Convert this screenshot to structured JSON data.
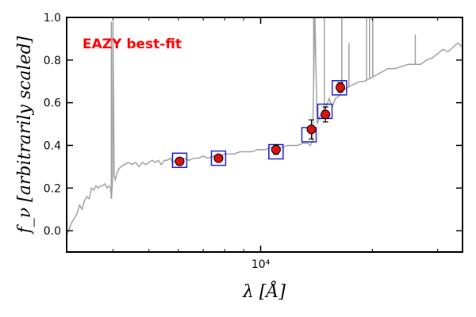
{
  "chart_data": {
    "type": "scatter",
    "title": "",
    "xlabel": "λ [Å]",
    "ylabel": "f_ν [arbitrarily scaled]",
    "x_scale": "log",
    "xlim": [
      3000,
      35000
    ],
    "ylim": [
      -0.1,
      1.0
    ],
    "x_ticks": [
      {
        "value": 10000,
        "label": "10⁴"
      }
    ],
    "y_ticks": [
      0.0,
      0.2,
      0.4,
      0.6,
      0.8,
      1.0
    ],
    "y_tick_labels": [
      "0.0",
      "0.2",
      "0.4",
      "0.6",
      "0.8",
      "1.0"
    ],
    "annotation": {
      "text": "EAZY best-fit",
      "color": "#ff0000",
      "position": "top-left"
    },
    "colors": {
      "template": "#a0a0a0",
      "observed_fill": "#dd1111",
      "observed_edge": "#000000",
      "model_box": "#1f1fcf"
    },
    "series": [
      {
        "name": "best-fit template spectrum",
        "kind": "line",
        "x": [
          3000,
          3050,
          3100,
          3150,
          3200,
          3250,
          3300,
          3350,
          3400,
          3450,
          3500,
          3550,
          3600,
          3650,
          3700,
          3750,
          3800,
          3850,
          3900,
          3940,
          3960,
          3990,
          4000,
          4030,
          4060,
          4100,
          4150,
          4200,
          4300,
          4400,
          4500,
          4600,
          4700,
          4800,
          4900,
          5000,
          5100,
          5200,
          5300,
          5400,
          5500,
          5600,
          5700,
          5800,
          5900,
          6000,
          6200,
          6400,
          6600,
          6800,
          7000,
          7200,
          7500,
          7800,
          8000,
          8200,
          8500,
          8800,
          9000,
          9200,
          9500,
          9800,
          10000,
          10300,
          10600,
          11000,
          11400,
          11800,
          12200,
          12600,
          13000,
          13200,
          13400,
          13600,
          13800,
          14000,
          14200,
          14400,
          14600,
          14800,
          15000,
          15300,
          15600,
          15900,
          16200,
          16500,
          16800,
          17100,
          17500,
          18000,
          18500,
          19000,
          19500,
          20000,
          21000,
          22000,
          23000,
          24000,
          25000,
          26000,
          27000,
          28000,
          29000,
          30000,
          31000,
          32000,
          33000,
          34000,
          35000
        ],
        "y": [
          -0.02,
          0.01,
          0.04,
          0.06,
          0.08,
          0.12,
          0.1,
          0.14,
          0.16,
          0.15,
          0.2,
          0.19,
          0.21,
          0.2,
          0.21,
          0.21,
          0.22,
          0.2,
          0.21,
          0.2,
          0.15,
          0.24,
          0.98,
          0.26,
          0.24,
          0.27,
          0.29,
          0.3,
          0.31,
          0.32,
          0.31,
          0.32,
          0.3,
          0.32,
          0.31,
          0.32,
          0.33,
          0.32,
          0.33,
          0.31,
          0.33,
          0.33,
          0.34,
          0.32,
          0.33,
          0.33,
          0.34,
          0.33,
          0.34,
          0.34,
          0.35,
          0.34,
          0.35,
          0.35,
          0.36,
          0.36,
          0.36,
          0.37,
          0.37,
          0.37,
          0.37,
          0.38,
          0.38,
          0.38,
          0.39,
          0.39,
          0.39,
          0.4,
          0.4,
          0.4,
          0.41,
          0.41,
          0.41,
          0.4,
          0.42,
          1.0,
          0.5,
          0.53,
          0.55,
          0.57,
          0.58,
          0.62,
          0.58,
          0.62,
          0.63,
          0.65,
          0.66,
          0.67,
          0.68,
          0.69,
          0.7,
          0.7,
          0.71,
          0.72,
          0.74,
          0.76,
          0.76,
          0.77,
          0.78,
          0.78,
          0.78,
          0.8,
          0.81,
          0.83,
          0.85,
          0.84,
          0.86,
          0.88,
          0.86
        ],
        "emission_lines": [
          {
            "x": 3960,
            "peak": 0.98
          },
          {
            "x": 13900,
            "peak": 1.0
          },
          {
            "x": 14850,
            "peak": 1.0
          },
          {
            "x": 16550,
            "peak": 1.0
          },
          {
            "x": 17300,
            "peak": 0.88
          },
          {
            "x": 19300,
            "peak": 1.0
          },
          {
            "x": 19650,
            "peak": 1.0
          },
          {
            "x": 20050,
            "peak": 1.0
          },
          {
            "x": 26100,
            "peak": 0.92
          }
        ]
      },
      {
        "name": "template fluxes (model photometry)",
        "kind": "square_markers",
        "x": [
          6050,
          7700,
          11000,
          13500,
          14900,
          16300
        ],
        "y": [
          0.33,
          0.34,
          0.37,
          0.45,
          0.56,
          0.67
        ]
      },
      {
        "name": "observed photometry",
        "kind": "errorbar_points",
        "x": [
          6050,
          7700,
          11000,
          13700,
          14950,
          16400
        ],
        "y": [
          0.325,
          0.34,
          0.38,
          0.475,
          0.545,
          0.672
        ],
        "yerr": [
          0.012,
          0.012,
          0.022,
          0.045,
          0.035,
          0.022
        ]
      }
    ]
  }
}
